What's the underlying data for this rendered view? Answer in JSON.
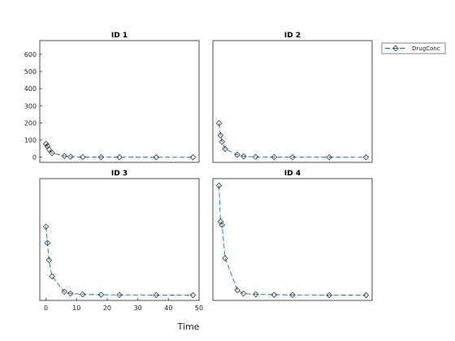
{
  "chart_data": {
    "type": "line",
    "xlabel": "Time",
    "xlim": [
      -2,
      50
    ],
    "xticks": [
      0,
      10,
      20,
      30,
      40,
      50
    ],
    "ylim_top": [
      -30,
      680
    ],
    "yticks_top": [
      0,
      100,
      200,
      300,
      400,
      500,
      600
    ],
    "ylim_bottom": [
      -30,
      680
    ],
    "legend": {
      "label": "DrugConc",
      "position": "top-right-outside"
    },
    "color": "#0e72a8",
    "line_style": "dashed",
    "marker": "diamond",
    "panels": [
      {
        "title": "ID 1",
        "x": [
          0,
          0.5,
          1,
          2,
          6,
          8,
          12,
          18,
          24,
          36,
          48
        ],
        "y": [
          78,
          65,
          45,
          25,
          7,
          3,
          1,
          0.5,
          0.3,
          0.1,
          0
        ]
      },
      {
        "title": "ID 2",
        "x": [
          0,
          0.5,
          1,
          2,
          6,
          8,
          12,
          18,
          24,
          36,
          48
        ],
        "y": [
          198,
          128,
          90,
          48,
          14,
          5,
          2,
          1,
          0.5,
          0.2,
          0
        ]
      },
      {
        "title": "ID 3",
        "x": [
          0,
          0.5,
          1,
          2,
          6,
          8,
          12,
          18,
          24,
          36,
          48
        ],
        "y": [
          400,
          305,
          205,
          110,
          20,
          10,
          5,
          3,
          2,
          1,
          0.5
        ]
      },
      {
        "title": "ID 4",
        "x": [
          0,
          0.5,
          1,
          2,
          6,
          8,
          12,
          18,
          24,
          36,
          48
        ],
        "y": [
          640,
          430,
          410,
          215,
          30,
          10,
          5,
          3,
          2,
          1,
          0.5
        ]
      }
    ]
  }
}
